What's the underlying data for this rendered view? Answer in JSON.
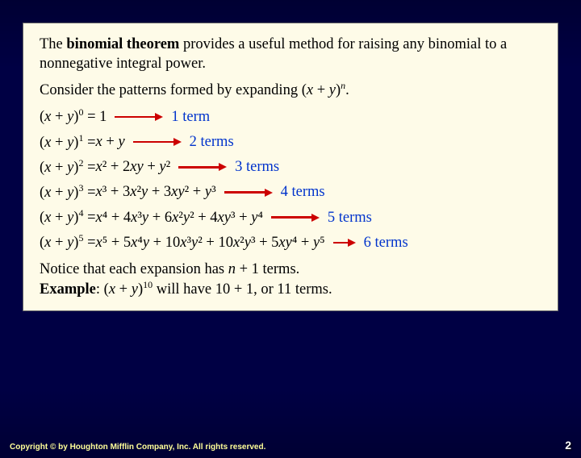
{
  "intro": {
    "pre": "The ",
    "bold": "binomial theorem",
    "post": " provides a useful method for raising any binomial to a nonnegative integral power."
  },
  "consider": {
    "text": "Consider the patterns formed by expanding (",
    "x": "x",
    "plus": " + ",
    "y": "y",
    "close": ")",
    "n": "n",
    "period": "."
  },
  "rows": [
    {
      "lhs_exp": "0",
      "eq": " = 1",
      "rhs": "",
      "arrow_len": 50,
      "label": "1 term"
    },
    {
      "lhs_exp": "1",
      "eq": " = ",
      "rhs": "x + y",
      "arrow_len": 50,
      "label": "2 terms"
    },
    {
      "lhs_exp": "2",
      "eq": " = ",
      "rhs": "x² + 2xy + y²",
      "arrow_len": 50,
      "label": "3 terms"
    },
    {
      "lhs_exp": "3",
      "eq": " = ",
      "rhs": "x³ + 3x²y + 3xy² + y³",
      "arrow_len": 50,
      "label": "4 terms"
    },
    {
      "lhs_exp": "4",
      "eq": " = ",
      "rhs": "x⁴ + 4x³y + 6x²y² + 4xy³ + y⁴",
      "arrow_len": 50,
      "label": "5 terms"
    },
    {
      "lhs_exp": "5",
      "eq": " = ",
      "rhs": "x⁵ + 5x⁴y + 10x³y² + 10x²y³ + 5xy⁴ + y⁵",
      "arrow_len": 18,
      "label": "6 terms"
    }
  ],
  "notice": {
    "line1_pre": "Notice that each expansion has ",
    "line1_n": "n",
    "line1_post": " + 1 terms.",
    "line2_bold": "Example",
    "line2_pre": ": (",
    "line2_x": "x",
    "line2_plus": " + ",
    "line2_y": "y",
    "line2_close": ")",
    "line2_exp": "10",
    "line2_post": " will have 10 + 1, or 11 terms."
  },
  "footer": {
    "copyright": "Copyright © by Houghton Mifflin Company, Inc. All rights reserved.",
    "page": "2"
  },
  "colors": {
    "background_top": "#000033",
    "content_bg": "#fefbe8",
    "arrow": "#cc0000",
    "term_label": "#0033cc",
    "footer_text": "#ffff99"
  }
}
